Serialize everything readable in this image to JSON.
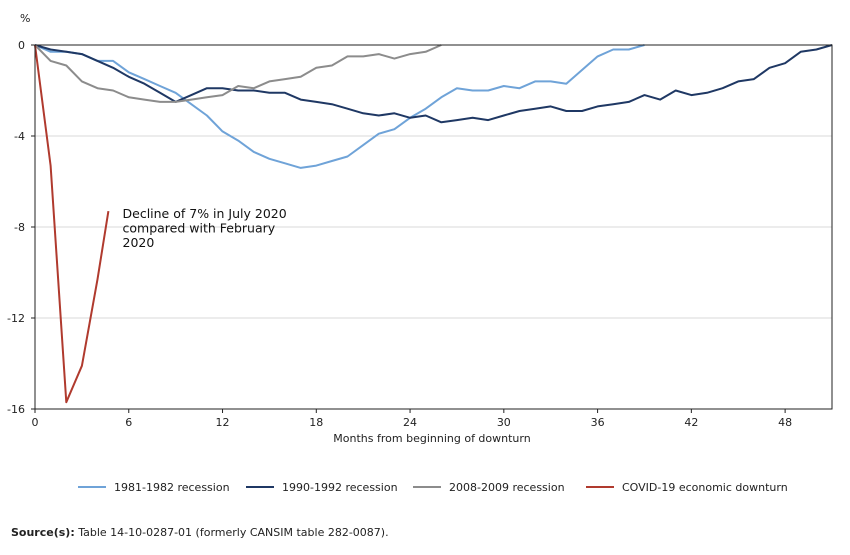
{
  "chart_data": {
    "type": "line",
    "ylabel": "%",
    "xlabel": "Months from beginning of downturn",
    "xlim": [
      0,
      51
    ],
    "ylim": [
      -16,
      0
    ],
    "xticks": [
      0,
      6,
      12,
      18,
      24,
      30,
      36,
      42,
      48
    ],
    "yticks": [
      0,
      -4,
      -8,
      -12,
      -16
    ],
    "grid": "horizontal",
    "legend_position": "bottom",
    "annotation": {
      "lines": [
        "Decline of 7% in July 2020",
        "compared with February",
        "2020"
      ],
      "x": 5.6,
      "y": -7.6
    },
    "series": [
      {
        "name": "1981-1982 recession",
        "color": "#6fa3d8",
        "x": [
          0,
          1,
          2,
          3,
          4,
          5,
          6,
          7,
          8,
          9,
          10,
          11,
          12,
          13,
          14,
          15,
          16,
          17,
          18,
          19,
          20,
          21,
          22,
          23,
          24,
          25,
          26,
          27,
          28,
          29,
          30,
          31,
          32,
          33,
          34,
          35,
          36,
          37,
          38,
          39
        ],
        "values": [
          0,
          -0.3,
          -0.3,
          -0.4,
          -0.7,
          -0.7,
          -1.2,
          -1.5,
          -1.8,
          -2.1,
          -2.6,
          -3.1,
          -3.8,
          -4.2,
          -4.7,
          -5.0,
          -5.2,
          -5.4,
          -5.3,
          -5.1,
          -4.9,
          -4.4,
          -3.9,
          -3.7,
          -3.2,
          -2.8,
          -2.3,
          -1.9,
          -2.0,
          -2.0,
          -1.8,
          -1.9,
          -1.6,
          -1.6,
          -1.7,
          -1.1,
          -0.5,
          -0.2,
          -0.2,
          0
        ]
      },
      {
        "name": "1990-1992 recession",
        "color": "#1f3864",
        "x": [
          0,
          1,
          2,
          3,
          4,
          5,
          6,
          7,
          8,
          9,
          10,
          11,
          12,
          13,
          14,
          15,
          16,
          17,
          18,
          19,
          20,
          21,
          22,
          23,
          24,
          25,
          26,
          27,
          28,
          29,
          30,
          31,
          32,
          33,
          34,
          35,
          36,
          37,
          38,
          39,
          40,
          41,
          42,
          43,
          44,
          45,
          46,
          47,
          48,
          49,
          50,
          51
        ],
        "values": [
          0,
          -0.2,
          -0.3,
          -0.4,
          -0.7,
          -1.0,
          -1.4,
          -1.7,
          -2.1,
          -2.5,
          -2.2,
          -1.9,
          -1.9,
          -2.0,
          -2.0,
          -2.1,
          -2.1,
          -2.4,
          -2.5,
          -2.6,
          -2.8,
          -3.0,
          -3.1,
          -3.0,
          -3.2,
          -3.1,
          -3.4,
          -3.3,
          -3.2,
          -3.3,
          -3.1,
          -2.9,
          -2.8,
          -2.7,
          -2.9,
          -2.9,
          -2.7,
          -2.6,
          -2.5,
          -2.2,
          -2.4,
          -2.0,
          -2.2,
          -2.1,
          -1.9,
          -1.6,
          -1.5,
          -1.0,
          -0.8,
          -0.3,
          -0.2,
          0
        ]
      },
      {
        "name": "2008-2009 recession",
        "color": "#8c8c8c",
        "x": [
          0,
          1,
          2,
          3,
          4,
          5,
          6,
          7,
          8,
          9,
          10,
          11,
          12,
          13,
          14,
          15,
          16,
          17,
          18,
          19,
          20,
          21,
          22,
          23,
          24,
          25,
          26
        ],
        "values": [
          0,
          -0.7,
          -0.9,
          -1.6,
          -1.9,
          -2.0,
          -2.3,
          -2.4,
          -2.5,
          -2.5,
          -2.4,
          -2.3,
          -2.2,
          -1.8,
          -1.9,
          -1.6,
          -1.5,
          -1.4,
          -1.0,
          -0.9,
          -0.5,
          -0.5,
          -0.4,
          -0.6,
          -0.4,
          -0.3,
          0
        ]
      },
      {
        "name": "COVID-19 economic downturn",
        "color": "#b03a2e",
        "x": [
          0,
          1,
          2,
          3,
          4,
          4.7
        ],
        "values": [
          0,
          -5.3,
          -15.7,
          -14.1,
          -10.3,
          -7.3
        ]
      }
    ]
  },
  "source": {
    "label": "Source(s):",
    "text": " Table 14-10-0287-01 (formerly CANSIM table 282-0087)."
  }
}
